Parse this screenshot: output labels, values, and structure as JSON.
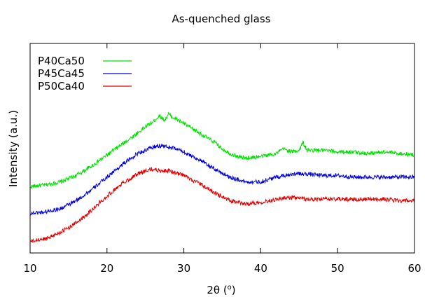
{
  "chart_data": {
    "type": "line",
    "title": "As-quenched glass",
    "xlabel": "2θ (",
    "xlabel_sup": "o",
    "xlabel_close": ")",
    "ylabel": "Intensity (a.u.)",
    "xlim": [
      10,
      60
    ],
    "ylim": [
      0,
      100
    ],
    "y_ticks_shown": false,
    "x_ticks": [
      "10",
      "20",
      "30",
      "40",
      "50",
      "60"
    ],
    "legend_position": "top-left",
    "grid": false,
    "series": [
      {
        "name": "P40Ca50",
        "color": "#00e000",
        "x": [
          10,
          12,
          14,
          16,
          18,
          20,
          22,
          24,
          25,
          26,
          26.8,
          27.5,
          28,
          28.5,
          29,
          30,
          31,
          32,
          33,
          34,
          35,
          36,
          37,
          38,
          40,
          42,
          43,
          44,
          45,
          45.5,
          46,
          48,
          50,
          52,
          54,
          56,
          58,
          60
        ],
        "values": [
          35,
          36,
          38,
          42,
          48,
          55,
          62,
          69,
          73,
          76,
          80,
          77,
          81,
          79,
          78,
          75,
          72,
          69,
          66,
          63,
          59,
          56,
          54,
          53,
          54,
          56,
          59,
          57,
          58,
          63,
          58,
          58,
          57,
          57,
          56,
          57,
          56,
          55
        ]
      },
      {
        "name": "P45Ca45",
        "color": "#0000e0",
        "x": [
          10,
          12,
          14,
          16,
          18,
          20,
          22,
          24,
          26,
          27,
          28,
          29,
          30,
          32,
          34,
          36,
          38,
          40,
          42,
          44,
          46,
          48,
          50,
          52,
          54,
          56,
          58,
          60
        ],
        "values": [
          18,
          19,
          21,
          26,
          33,
          41,
          49,
          56,
          60,
          61,
          60,
          59,
          57,
          52,
          46,
          41,
          38,
          38,
          41,
          43,
          43,
          42,
          42,
          41,
          41,
          41,
          41,
          41
        ]
      },
      {
        "name": "P50Ca40",
        "color": "#e00000",
        "x": [
          10,
          12,
          14,
          16,
          18,
          20,
          22,
          24,
          25,
          26,
          27,
          28,
          30,
          32,
          34,
          36,
          38,
          40,
          42,
          44,
          46,
          48,
          50,
          52,
          54,
          56,
          58,
          60
        ],
        "values": [
          0,
          2,
          6,
          12,
          20,
          29,
          37,
          43,
          45,
          46,
          45,
          45,
          42,
          37,
          31,
          26,
          24,
          25,
          27,
          28,
          27,
          27,
          27,
          27,
          27,
          27,
          26,
          26
        ]
      }
    ]
  }
}
